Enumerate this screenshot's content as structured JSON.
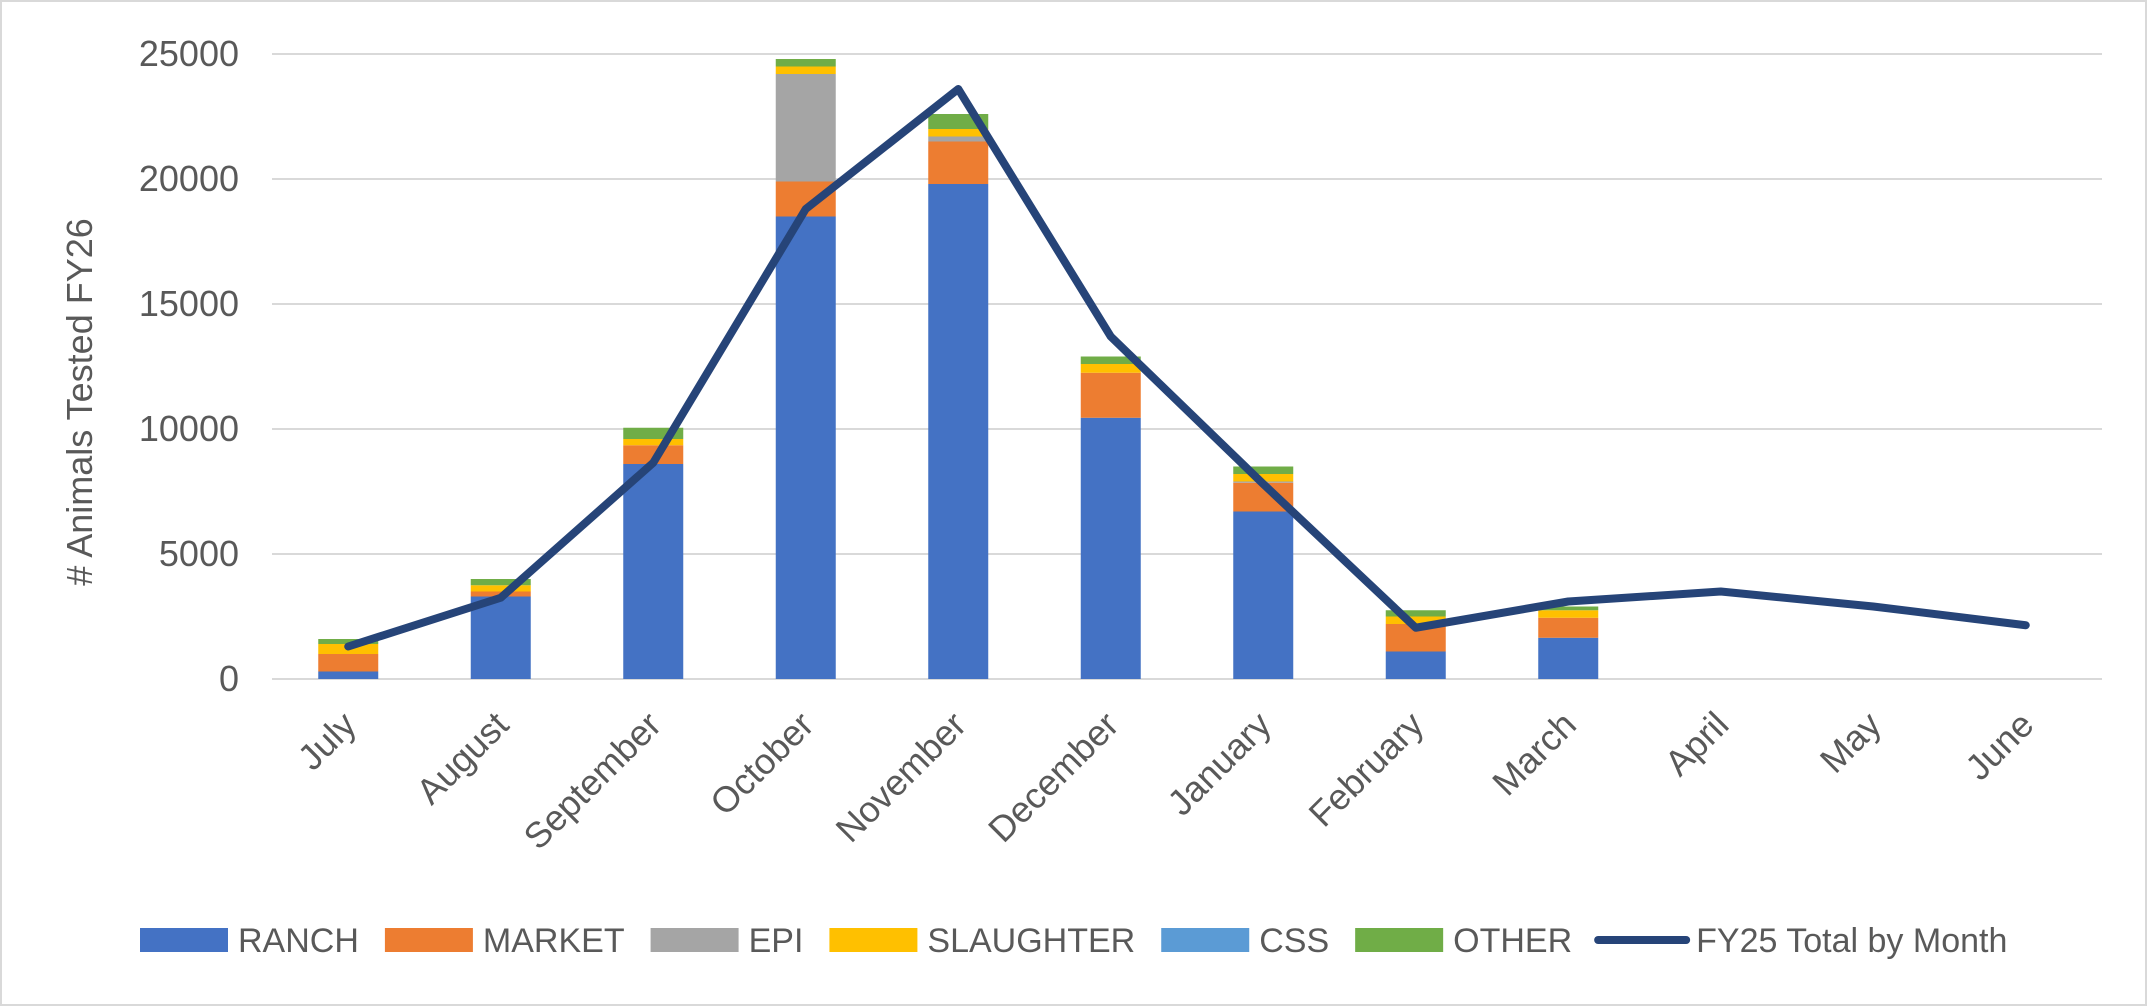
{
  "chart_data": {
    "type": "bar",
    "stacked": true,
    "title": "",
    "xlabel": "",
    "ylabel": "# Animals Tested FY26",
    "ylim": [
      0,
      25000
    ],
    "yticks": [
      0,
      5000,
      10000,
      15000,
      20000,
      25000
    ],
    "grid": true,
    "legend_position": "bottom",
    "categories": [
      "July",
      "August",
      "September",
      "October",
      "November",
      "December",
      "January",
      "February",
      "March",
      "April",
      "May",
      "June"
    ],
    "series": [
      {
        "name": "RANCH",
        "type": "bar",
        "color": "#4472C4",
        "values": [
          300,
          3300,
          8600,
          18500,
          19800,
          10450,
          6700,
          1100,
          1650,
          null,
          null,
          null
        ]
      },
      {
        "name": "MARKET",
        "type": "bar",
        "color": "#ED7D31",
        "values": [
          700,
          200,
          750,
          1400,
          1700,
          1800,
          1150,
          1100,
          800,
          null,
          null,
          null
        ]
      },
      {
        "name": "EPI",
        "type": "bar",
        "color": "#A5A5A5",
        "values": [
          0,
          0,
          0,
          4300,
          200,
          0,
          50,
          0,
          0,
          null,
          null,
          null
        ]
      },
      {
        "name": "SLAUGHTER",
        "type": "bar",
        "color": "#FFC000",
        "values": [
          400,
          250,
          250,
          300,
          300,
          350,
          300,
          300,
          300,
          null,
          null,
          null
        ]
      },
      {
        "name": "CSS",
        "type": "bar",
        "color": "#5B9BD5",
        "values": [
          0,
          0,
          0,
          0,
          0,
          0,
          0,
          0,
          0,
          null,
          null,
          null
        ]
      },
      {
        "name": "OTHER",
        "type": "bar",
        "color": "#70AD47",
        "values": [
          200,
          250,
          450,
          300,
          600,
          300,
          300,
          250,
          150,
          null,
          null,
          null
        ]
      },
      {
        "name": "FY25 Total by Month",
        "type": "line",
        "color": "#264478",
        "values": [
          1300,
          3250,
          8650,
          18800,
          23600,
          13700,
          7800,
          2050,
          3100,
          3500,
          2900,
          2150
        ]
      }
    ]
  }
}
